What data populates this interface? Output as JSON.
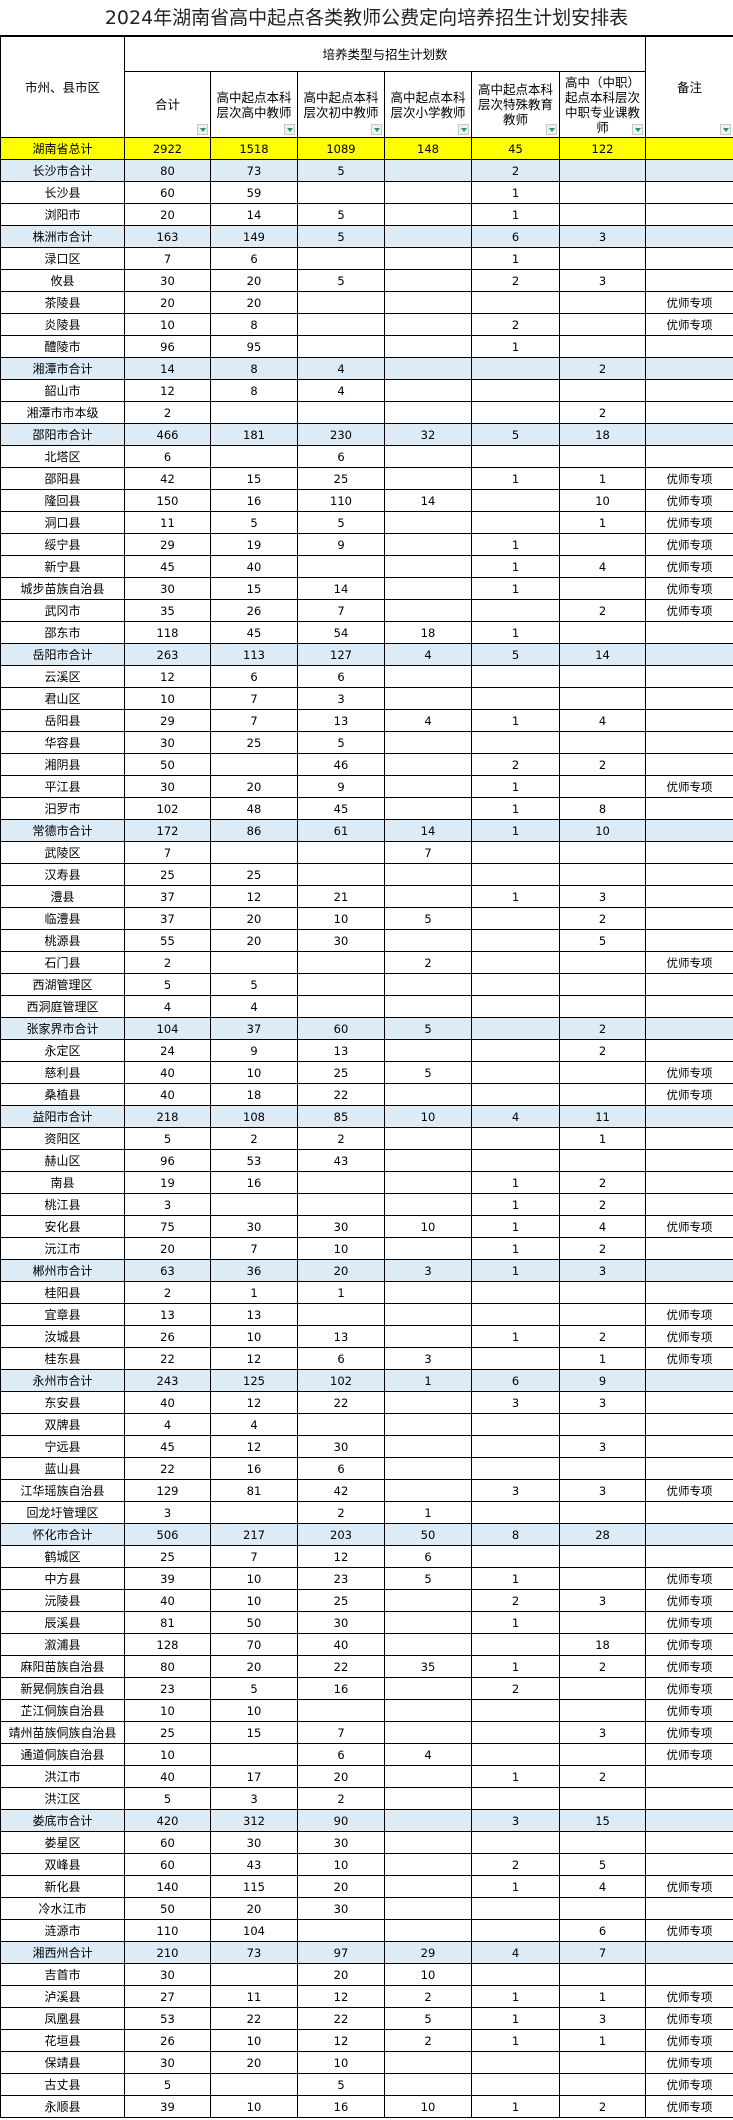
{
  "title": "2024年湖南省高中起点各类教师公费定向培养招生计划安排表",
  "header": {
    "region": "市州、县市区",
    "group": "培养类型与招生计划数",
    "total": "合计",
    "senior_high": "高中起点本科层次高中教师",
    "junior_high": "高中起点本科层次初中教师",
    "primary": "高中起点本科层次小学教师",
    "special_ed": "高中起点本科层次特殊教育教师",
    "vocational": "高中（中职）起点本科层次中职专业课教师",
    "note": "备注"
  },
  "colors": {
    "province_row": "#ffff00",
    "city_row": "#ddebf7",
    "filter_arrow": "#1a9e5a"
  },
  "rows": [
    {
      "kind": "province",
      "cells": [
        "湖南省总计",
        "2922",
        "1518",
        "1089",
        "148",
        "45",
        "122",
        ""
      ]
    },
    {
      "kind": "city",
      "cells": [
        "长沙市合计",
        "80",
        "73",
        "5",
        "",
        "2",
        "",
        ""
      ]
    },
    {
      "kind": "county",
      "cells": [
        "长沙县",
        "60",
        "59",
        "",
        "",
        "1",
        "",
        ""
      ]
    },
    {
      "kind": "county",
      "cells": [
        "浏阳市",
        "20",
        "14",
        "5",
        "",
        "1",
        "",
        ""
      ]
    },
    {
      "kind": "city",
      "cells": [
        "株洲市合计",
        "163",
        "149",
        "5",
        "",
        "6",
        "3",
        ""
      ]
    },
    {
      "kind": "county",
      "cells": [
        "渌口区",
        "7",
        "6",
        "",
        "",
        "1",
        "",
        ""
      ]
    },
    {
      "kind": "county",
      "cells": [
        "攸县",
        "30",
        "20",
        "5",
        "",
        "2",
        "3",
        ""
      ]
    },
    {
      "kind": "county",
      "cells": [
        "茶陵县",
        "20",
        "20",
        "",
        "",
        "",
        "",
        "优师专项"
      ]
    },
    {
      "kind": "county",
      "cells": [
        "炎陵县",
        "10",
        "8",
        "",
        "",
        "2",
        "",
        "优师专项"
      ]
    },
    {
      "kind": "county",
      "cells": [
        "醴陵市",
        "96",
        "95",
        "",
        "",
        "1",
        "",
        ""
      ]
    },
    {
      "kind": "city",
      "cells": [
        "湘潭市合计",
        "14",
        "8",
        "4",
        "",
        "",
        "2",
        ""
      ]
    },
    {
      "kind": "county",
      "cells": [
        "韶山市",
        "12",
        "8",
        "4",
        "",
        "",
        "",
        ""
      ]
    },
    {
      "kind": "county",
      "cells": [
        "湘潭市市本级",
        "2",
        "",
        "",
        "",
        "",
        "2",
        ""
      ]
    },
    {
      "kind": "city",
      "cells": [
        "邵阳市合计",
        "466",
        "181",
        "230",
        "32",
        "5",
        "18",
        ""
      ]
    },
    {
      "kind": "county",
      "cells": [
        "北塔区",
        "6",
        "",
        "6",
        "",
        "",
        "",
        ""
      ]
    },
    {
      "kind": "county",
      "cells": [
        "邵阳县",
        "42",
        "15",
        "25",
        "",
        "1",
        "1",
        "优师专项"
      ]
    },
    {
      "kind": "county",
      "cells": [
        "隆回县",
        "150",
        "16",
        "110",
        "14",
        "",
        "10",
        "优师专项"
      ]
    },
    {
      "kind": "county",
      "cells": [
        "洞口县",
        "11",
        "5",
        "5",
        "",
        "",
        "1",
        "优师专项"
      ]
    },
    {
      "kind": "county",
      "cells": [
        "绥宁县",
        "29",
        "19",
        "9",
        "",
        "1",
        "",
        "优师专项"
      ]
    },
    {
      "kind": "county",
      "cells": [
        "新宁县",
        "45",
        "40",
        "",
        "",
        "1",
        "4",
        "优师专项"
      ]
    },
    {
      "kind": "county",
      "cells": [
        "城步苗族自治县",
        "30",
        "15",
        "14",
        "",
        "1",
        "",
        "优师专项"
      ]
    },
    {
      "kind": "county",
      "cells": [
        "武冈市",
        "35",
        "26",
        "7",
        "",
        "",
        "2",
        "优师专项"
      ]
    },
    {
      "kind": "county",
      "cells": [
        "邵东市",
        "118",
        "45",
        "54",
        "18",
        "1",
        "",
        ""
      ]
    },
    {
      "kind": "city",
      "cells": [
        "岳阳市合计",
        "263",
        "113",
        "127",
        "4",
        "5",
        "14",
        ""
      ]
    },
    {
      "kind": "county",
      "cells": [
        "云溪区",
        "12",
        "6",
        "6",
        "",
        "",
        "",
        ""
      ]
    },
    {
      "kind": "county",
      "cells": [
        "君山区",
        "10",
        "7",
        "3",
        "",
        "",
        "",
        ""
      ]
    },
    {
      "kind": "county",
      "cells": [
        "岳阳县",
        "29",
        "7",
        "13",
        "4",
        "1",
        "4",
        ""
      ]
    },
    {
      "kind": "county",
      "cells": [
        "华容县",
        "30",
        "25",
        "5",
        "",
        "",
        "",
        ""
      ]
    },
    {
      "kind": "county",
      "cells": [
        "湘阴县",
        "50",
        "",
        "46",
        "",
        "2",
        "2",
        ""
      ]
    },
    {
      "kind": "county",
      "cells": [
        "平江县",
        "30",
        "20",
        "9",
        "",
        "1",
        "",
        "优师专项"
      ]
    },
    {
      "kind": "county",
      "cells": [
        "汨罗市",
        "102",
        "48",
        "45",
        "",
        "1",
        "8",
        ""
      ]
    },
    {
      "kind": "city",
      "cells": [
        "常德市合计",
        "172",
        "86",
        "61",
        "14",
        "1",
        "10",
        ""
      ]
    },
    {
      "kind": "county",
      "cells": [
        "武陵区",
        "7",
        "",
        "",
        "7",
        "",
        "",
        ""
      ]
    },
    {
      "kind": "county",
      "cells": [
        "汉寿县",
        "25",
        "25",
        "",
        "",
        "",
        "",
        ""
      ]
    },
    {
      "kind": "county",
      "cells": [
        "澧县",
        "37",
        "12",
        "21",
        "",
        "1",
        "3",
        ""
      ]
    },
    {
      "kind": "county",
      "cells": [
        "临澧县",
        "37",
        "20",
        "10",
        "5",
        "",
        "2",
        ""
      ]
    },
    {
      "kind": "county",
      "cells": [
        "桃源县",
        "55",
        "20",
        "30",
        "",
        "",
        "5",
        ""
      ]
    },
    {
      "kind": "county",
      "cells": [
        "石门县",
        "2",
        "",
        "",
        "2",
        "",
        "",
        "优师专项"
      ]
    },
    {
      "kind": "county",
      "cells": [
        "西湖管理区",
        "5",
        "5",
        "",
        "",
        "",
        "",
        ""
      ]
    },
    {
      "kind": "county",
      "cells": [
        "西洞庭管理区",
        "4",
        "4",
        "",
        "",
        "",
        "",
        ""
      ]
    },
    {
      "kind": "city",
      "cells": [
        "张家界市合计",
        "104",
        "37",
        "60",
        "5",
        "",
        "2",
        ""
      ]
    },
    {
      "kind": "county",
      "cells": [
        "永定区",
        "24",
        "9",
        "13",
        "",
        "",
        "2",
        ""
      ]
    },
    {
      "kind": "county",
      "cells": [
        "慈利县",
        "40",
        "10",
        "25",
        "5",
        "",
        "",
        "优师专项"
      ]
    },
    {
      "kind": "county",
      "cells": [
        "桑植县",
        "40",
        "18",
        "22",
        "",
        "",
        "",
        "优师专项"
      ]
    },
    {
      "kind": "city",
      "cells": [
        "益阳市合计",
        "218",
        "108",
        "85",
        "10",
        "4",
        "11",
        ""
      ]
    },
    {
      "kind": "county",
      "cells": [
        "资阳区",
        "5",
        "2",
        "2",
        "",
        "",
        "1",
        ""
      ]
    },
    {
      "kind": "county",
      "cells": [
        "赫山区",
        "96",
        "53",
        "43",
        "",
        "",
        "",
        ""
      ]
    },
    {
      "kind": "county",
      "cells": [
        "南县",
        "19",
        "16",
        "",
        "",
        "1",
        "2",
        ""
      ]
    },
    {
      "kind": "county",
      "cells": [
        "桃江县",
        "3",
        "",
        "",
        "",
        "1",
        "2",
        ""
      ]
    },
    {
      "kind": "county",
      "cells": [
        "安化县",
        "75",
        "30",
        "30",
        "10",
        "1",
        "4",
        "优师专项"
      ]
    },
    {
      "kind": "county",
      "cells": [
        "沅江市",
        "20",
        "7",
        "10",
        "",
        "1",
        "2",
        ""
      ]
    },
    {
      "kind": "city",
      "cells": [
        "郴州市合计",
        "63",
        "36",
        "20",
        "3",
        "1",
        "3",
        ""
      ]
    },
    {
      "kind": "county",
      "cells": [
        "桂阳县",
        "2",
        "1",
        "1",
        "",
        "",
        "",
        ""
      ]
    },
    {
      "kind": "county",
      "cells": [
        "宜章县",
        "13",
        "13",
        "",
        "",
        "",
        "",
        "优师专项"
      ]
    },
    {
      "kind": "county",
      "cells": [
        "汝城县",
        "26",
        "10",
        "13",
        "",
        "1",
        "2",
        "优师专项"
      ]
    },
    {
      "kind": "county",
      "cells": [
        "桂东县",
        "22",
        "12",
        "6",
        "3",
        "",
        "1",
        "优师专项"
      ]
    },
    {
      "kind": "city",
      "cells": [
        "永州市合计",
        "243",
        "125",
        "102",
        "1",
        "6",
        "9",
        ""
      ]
    },
    {
      "kind": "county",
      "cells": [
        "东安县",
        "40",
        "12",
        "22",
        "",
        "3",
        "3",
        ""
      ]
    },
    {
      "kind": "county",
      "cells": [
        "双牌县",
        "4",
        "4",
        "",
        "",
        "",
        "",
        ""
      ]
    },
    {
      "kind": "county",
      "cells": [
        "宁远县",
        "45",
        "12",
        "30",
        "",
        "",
        "3",
        ""
      ]
    },
    {
      "kind": "county",
      "cells": [
        "蓝山县",
        "22",
        "16",
        "6",
        "",
        "",
        "",
        ""
      ]
    },
    {
      "kind": "county",
      "cells": [
        "江华瑶族自治县",
        "129",
        "81",
        "42",
        "",
        "3",
        "3",
        "优师专项"
      ]
    },
    {
      "kind": "county",
      "cells": [
        "回龙圩管理区",
        "3",
        "",
        "2",
        "1",
        "",
        "",
        ""
      ]
    },
    {
      "kind": "city",
      "cells": [
        "怀化市合计",
        "506",
        "217",
        "203",
        "50",
        "8",
        "28",
        ""
      ]
    },
    {
      "kind": "county",
      "cells": [
        "鹤城区",
        "25",
        "7",
        "12",
        "6",
        "",
        "",
        ""
      ]
    },
    {
      "kind": "county",
      "cells": [
        "中方县",
        "39",
        "10",
        "23",
        "5",
        "1",
        "",
        "优师专项"
      ]
    },
    {
      "kind": "county",
      "cells": [
        "沅陵县",
        "40",
        "10",
        "25",
        "",
        "2",
        "3",
        "优师专项"
      ]
    },
    {
      "kind": "county",
      "cells": [
        "辰溪县",
        "81",
        "50",
        "30",
        "",
        "1",
        "",
        "优师专项"
      ]
    },
    {
      "kind": "county",
      "cells": [
        "溆浦县",
        "128",
        "70",
        "40",
        "",
        "",
        "18",
        "优师专项"
      ]
    },
    {
      "kind": "county",
      "cells": [
        "麻阳苗族自治县",
        "80",
        "20",
        "22",
        "35",
        "1",
        "2",
        "优师专项"
      ]
    },
    {
      "kind": "county",
      "cells": [
        "新晃侗族自治县",
        "23",
        "5",
        "16",
        "",
        "2",
        "",
        "优师专项"
      ]
    },
    {
      "kind": "county",
      "cells": [
        "芷江侗族自治县",
        "10",
        "10",
        "",
        "",
        "",
        "",
        "优师专项"
      ]
    },
    {
      "kind": "county",
      "cells": [
        "靖州苗族侗族自治县",
        "25",
        "15",
        "7",
        "",
        "",
        "3",
        "优师专项"
      ]
    },
    {
      "kind": "county",
      "cells": [
        "通道侗族自治县",
        "10",
        "",
        "6",
        "4",
        "",
        "",
        "优师专项"
      ]
    },
    {
      "kind": "county",
      "cells": [
        "洪江市",
        "40",
        "17",
        "20",
        "",
        "1",
        "2",
        ""
      ]
    },
    {
      "kind": "county",
      "cells": [
        "洪江区",
        "5",
        "3",
        "2",
        "",
        "",
        "",
        ""
      ]
    },
    {
      "kind": "city",
      "cells": [
        "娄底市合计",
        "420",
        "312",
        "90",
        "",
        "3",
        "15",
        ""
      ]
    },
    {
      "kind": "county",
      "cells": [
        "娄星区",
        "60",
        "30",
        "30",
        "",
        "",
        "",
        ""
      ]
    },
    {
      "kind": "county",
      "cells": [
        "双峰县",
        "60",
        "43",
        "10",
        "",
        "2",
        "5",
        ""
      ]
    },
    {
      "kind": "county",
      "cells": [
        "新化县",
        "140",
        "115",
        "20",
        "",
        "1",
        "4",
        "优师专项"
      ]
    },
    {
      "kind": "county",
      "cells": [
        "冷水江市",
        "50",
        "20",
        "30",
        "",
        "",
        "",
        ""
      ]
    },
    {
      "kind": "county",
      "cells": [
        "涟源市",
        "110",
        "104",
        "",
        "",
        "",
        "6",
        "优师专项"
      ]
    },
    {
      "kind": "city",
      "cells": [
        "湘西州合计",
        "210",
        "73",
        "97",
        "29",
        "4",
        "7",
        ""
      ]
    },
    {
      "kind": "county",
      "cells": [
        "吉首市",
        "30",
        "",
        "20",
        "10",
        "",
        "",
        ""
      ]
    },
    {
      "kind": "county",
      "cells": [
        "泸溪县",
        "27",
        "11",
        "12",
        "2",
        "1",
        "1",
        "优师专项"
      ]
    },
    {
      "kind": "county",
      "cells": [
        "凤凰县",
        "53",
        "22",
        "22",
        "5",
        "1",
        "3",
        "优师专项"
      ]
    },
    {
      "kind": "county",
      "cells": [
        "花垣县",
        "26",
        "10",
        "12",
        "2",
        "1",
        "1",
        "优师专项"
      ]
    },
    {
      "kind": "county",
      "cells": [
        "保靖县",
        "30",
        "20",
        "10",
        "",
        "",
        "",
        "优师专项"
      ]
    },
    {
      "kind": "county",
      "cells": [
        "古丈县",
        "5",
        "",
        "5",
        "",
        "",
        "",
        "优师专项"
      ]
    },
    {
      "kind": "county",
      "cells": [
        "永顺县",
        "39",
        "10",
        "16",
        "10",
        "1",
        "2",
        "优师专项"
      ]
    }
  ]
}
